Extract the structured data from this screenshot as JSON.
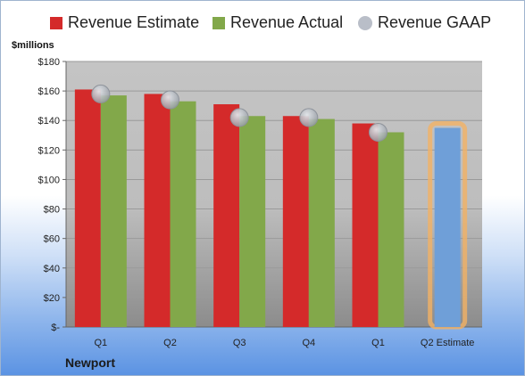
{
  "unit_label": "$millions",
  "company": "Newport",
  "chart_data": {
    "type": "bar",
    "categories": [
      "Q1",
      "Q2",
      "Q3",
      "Q4",
      "Q1",
      "Q2 Estimate"
    ],
    "series": [
      {
        "name": "Revenue Estimate",
        "color": "#d42a2a",
        "values": [
          161,
          158,
          151,
          143,
          138,
          null
        ]
      },
      {
        "name": "Revenue Actual",
        "color": "#82a84a",
        "values": [
          157,
          153,
          143,
          141,
          132,
          null
        ]
      },
      {
        "name": "Revenue GAAP",
        "color": "#b9bec8",
        "marker": "dot",
        "values": [
          158,
          154,
          142,
          142,
          132,
          null
        ]
      },
      {
        "name": "",
        "color": "#6f9fd8",
        "values": [
          null,
          null,
          null,
          null,
          null,
          135
        ],
        "highlight": "#f2b164"
      }
    ],
    "y_ticks": [
      "$-",
      "$20",
      "$40",
      "$60",
      "$80",
      "$100",
      "$120",
      "$140",
      "$160",
      "$180"
    ],
    "ylim": [
      0,
      180
    ],
    "grid": true,
    "legend_position": "top"
  }
}
